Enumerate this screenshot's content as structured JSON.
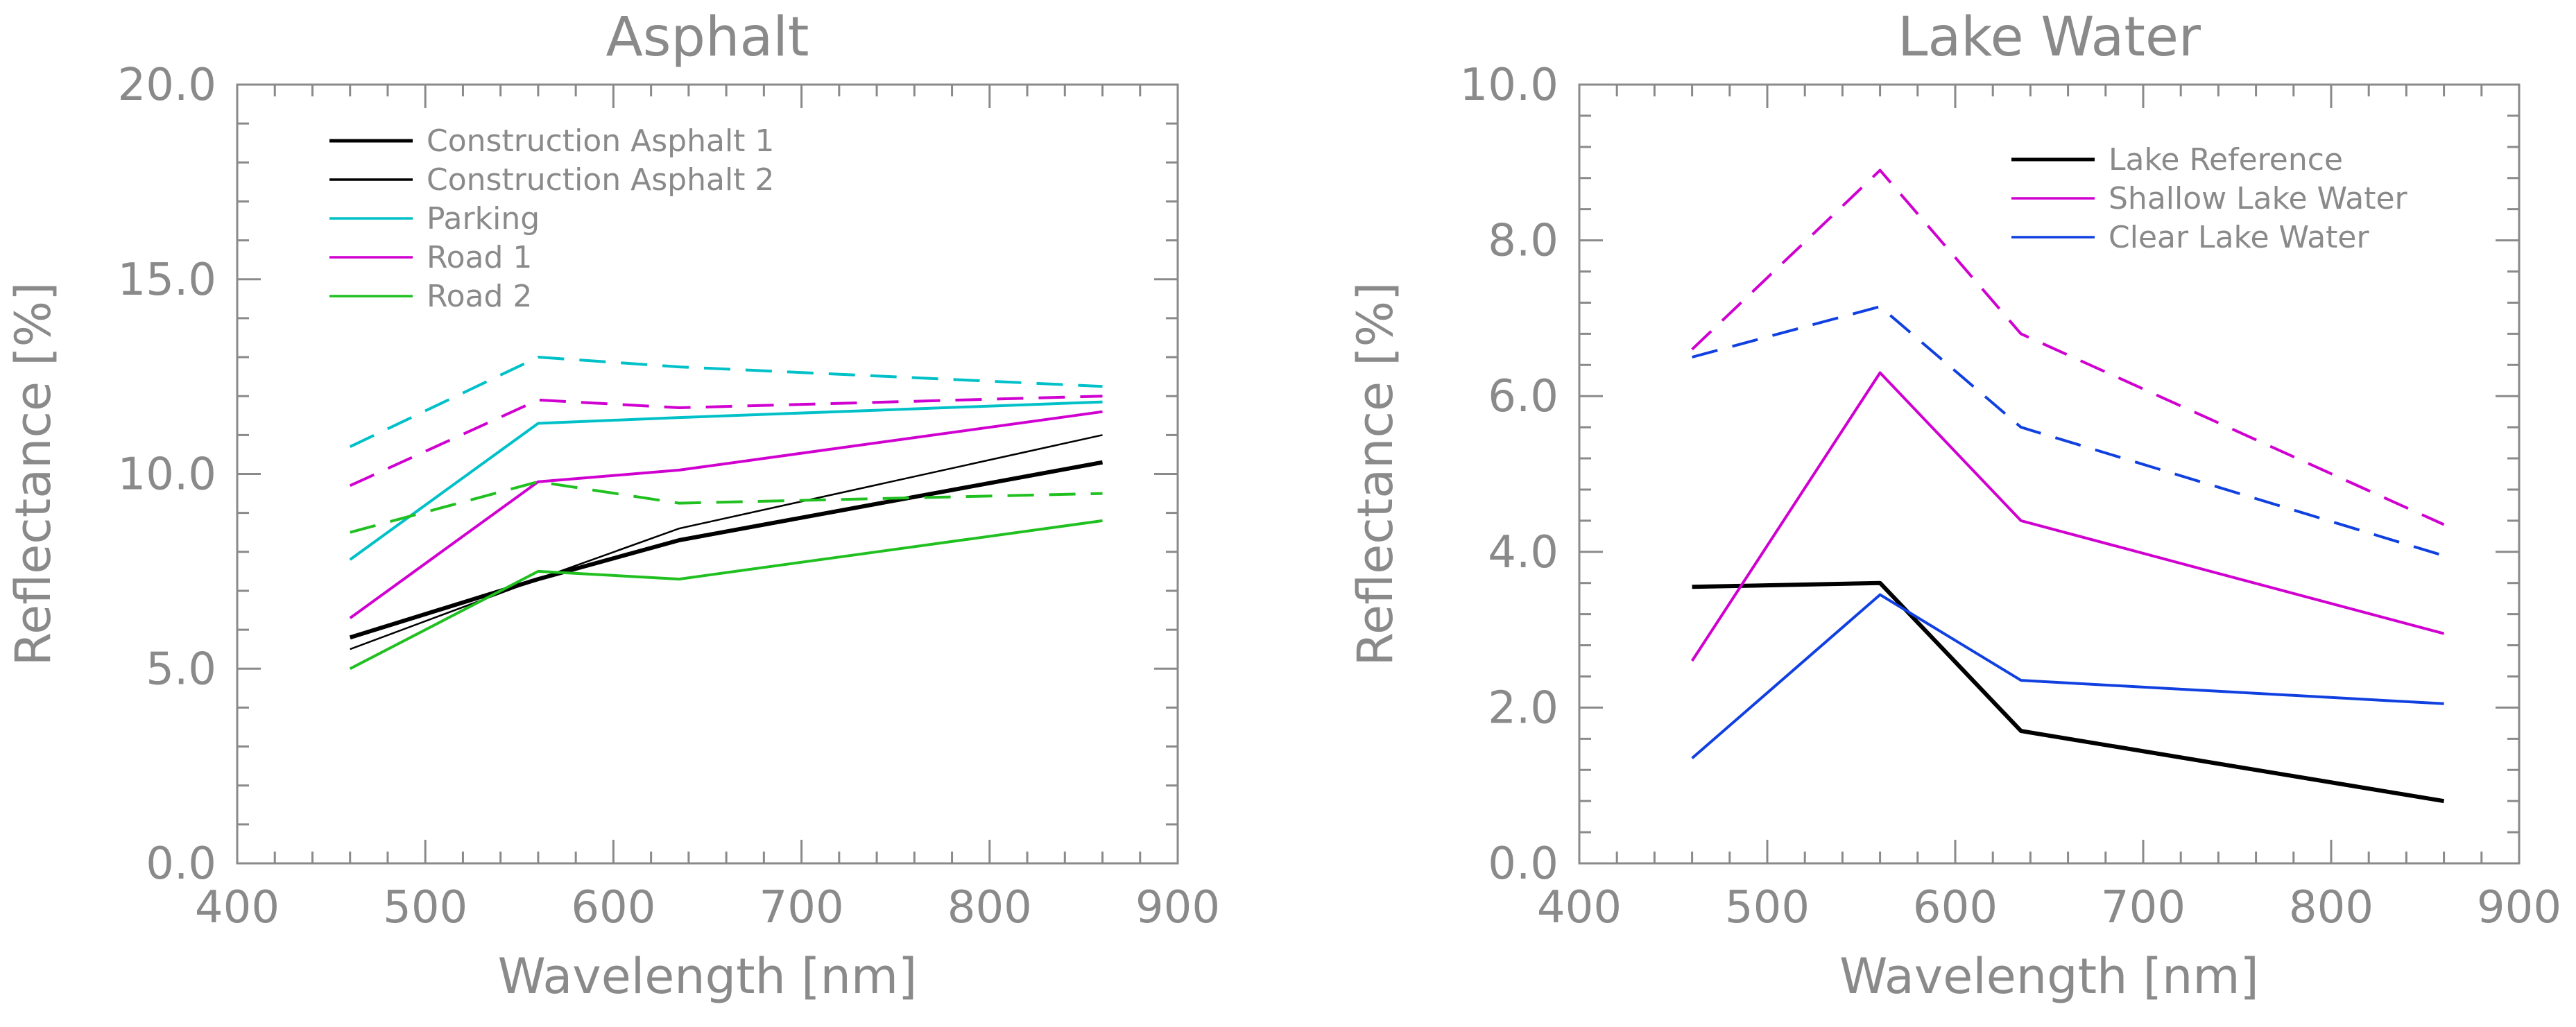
{
  "chart_data": [
    {
      "type": "line",
      "title": "Asphalt",
      "xlabel": "Wavelength [nm]",
      "ylabel": "Reflectance [%]",
      "xlim": [
        400,
        900
      ],
      "ylim": [
        0,
        20
      ],
      "x_ticks": [
        "400",
        "500",
        "600",
        "700",
        "800",
        "900"
      ],
      "y_ticks": [
        "0.0",
        "5.0",
        "10.0",
        "15.0",
        "20.0"
      ],
      "legend": [
        {
          "label": "Construction Asphalt 1",
          "color": "#000000"
        },
        {
          "label": "Construction Asphalt 2",
          "color": "#000000"
        },
        {
          "label": "Parking",
          "color": "#00c0c8"
        },
        {
          "label": "Road 1",
          "color": "#d000d0"
        },
        {
          "label": "Road 2",
          "color": "#20c020"
        }
      ],
      "series": [
        {
          "name": "Construction Asphalt 1",
          "color": "#000000",
          "style": "solid",
          "weight": "thick",
          "x": [
            460,
            560,
            635,
            860
          ],
          "values": [
            5.8,
            7.3,
            8.3,
            10.3
          ]
        },
        {
          "name": "Construction Asphalt 2",
          "color": "#000000",
          "style": "solid",
          "weight": "thin",
          "x": [
            460,
            560,
            635,
            860
          ],
          "values": [
            5.5,
            7.3,
            8.6,
            11.0
          ]
        },
        {
          "name": "Parking",
          "color": "#00c0c8",
          "style": "solid",
          "weight": "normal",
          "x": [
            460,
            560,
            635,
            860
          ],
          "values": [
            7.8,
            11.3,
            11.45,
            11.85
          ]
        },
        {
          "name": "Parking",
          "color": "#00c0c8",
          "style": "dashed",
          "weight": "normal",
          "x": [
            460,
            560,
            635,
            860
          ],
          "values": [
            10.7,
            13.0,
            12.75,
            12.25
          ]
        },
        {
          "name": "Road 1",
          "color": "#d000d0",
          "style": "solid",
          "weight": "normal",
          "x": [
            460,
            560,
            635,
            860
          ],
          "values": [
            6.3,
            9.8,
            10.1,
            11.6
          ]
        },
        {
          "name": "Road 1",
          "color": "#d000d0",
          "style": "dashed",
          "weight": "normal",
          "x": [
            460,
            560,
            635,
            860
          ],
          "values": [
            9.7,
            11.9,
            11.7,
            12.0
          ]
        },
        {
          "name": "Road 2",
          "color": "#20c020",
          "style": "solid",
          "weight": "normal",
          "x": [
            460,
            560,
            635,
            860
          ],
          "values": [
            5.0,
            7.5,
            7.3,
            8.8
          ]
        },
        {
          "name": "Road 2",
          "color": "#20c020",
          "style": "dashed",
          "weight": "normal",
          "x": [
            460,
            560,
            635,
            860
          ],
          "values": [
            8.5,
            9.8,
            9.25,
            9.5
          ]
        }
      ]
    },
    {
      "type": "line",
      "title": "Lake Water",
      "xlabel": "Wavelength [nm]",
      "ylabel": "Reflectance [%]",
      "xlim": [
        400,
        900
      ],
      "ylim": [
        0,
        10
      ],
      "x_ticks": [
        "400",
        "500",
        "600",
        "700",
        "800",
        "900"
      ],
      "y_ticks": [
        "0.0",
        "2.0",
        "4.0",
        "6.0",
        "8.0",
        "10.0"
      ],
      "legend": [
        {
          "label": "Lake Reference",
          "color": "#000000"
        },
        {
          "label": "Shallow Lake Water",
          "color": "#d000d0"
        },
        {
          "label": "Clear Lake Water",
          "color": "#1040e0"
        }
      ],
      "series": [
        {
          "name": "Lake Reference",
          "color": "#000000",
          "style": "solid",
          "weight": "thick",
          "x": [
            460,
            560,
            635,
            860
          ],
          "values": [
            3.55,
            3.6,
            1.7,
            0.8
          ]
        },
        {
          "name": "Shallow Lake Water",
          "color": "#d000d0",
          "style": "solid",
          "weight": "normal",
          "x": [
            460,
            560,
            635,
            860
          ],
          "values": [
            2.6,
            6.3,
            4.4,
            2.95
          ]
        },
        {
          "name": "Shallow Lake Water",
          "color": "#d000d0",
          "style": "dashed",
          "weight": "normal",
          "x": [
            460,
            560,
            635,
            860
          ],
          "values": [
            6.6,
            8.9,
            6.8,
            4.35
          ]
        },
        {
          "name": "Clear Lake Water",
          "color": "#1040e0",
          "style": "solid",
          "weight": "normal",
          "x": [
            460,
            560,
            635,
            860
          ],
          "values": [
            1.35,
            3.45,
            2.35,
            2.05
          ]
        },
        {
          "name": "Clear Lake Water",
          "color": "#1040e0",
          "style": "dashed",
          "weight": "normal",
          "x": [
            460,
            560,
            635,
            860
          ],
          "values": [
            6.5,
            7.15,
            5.6,
            3.95
          ]
        }
      ]
    }
  ]
}
